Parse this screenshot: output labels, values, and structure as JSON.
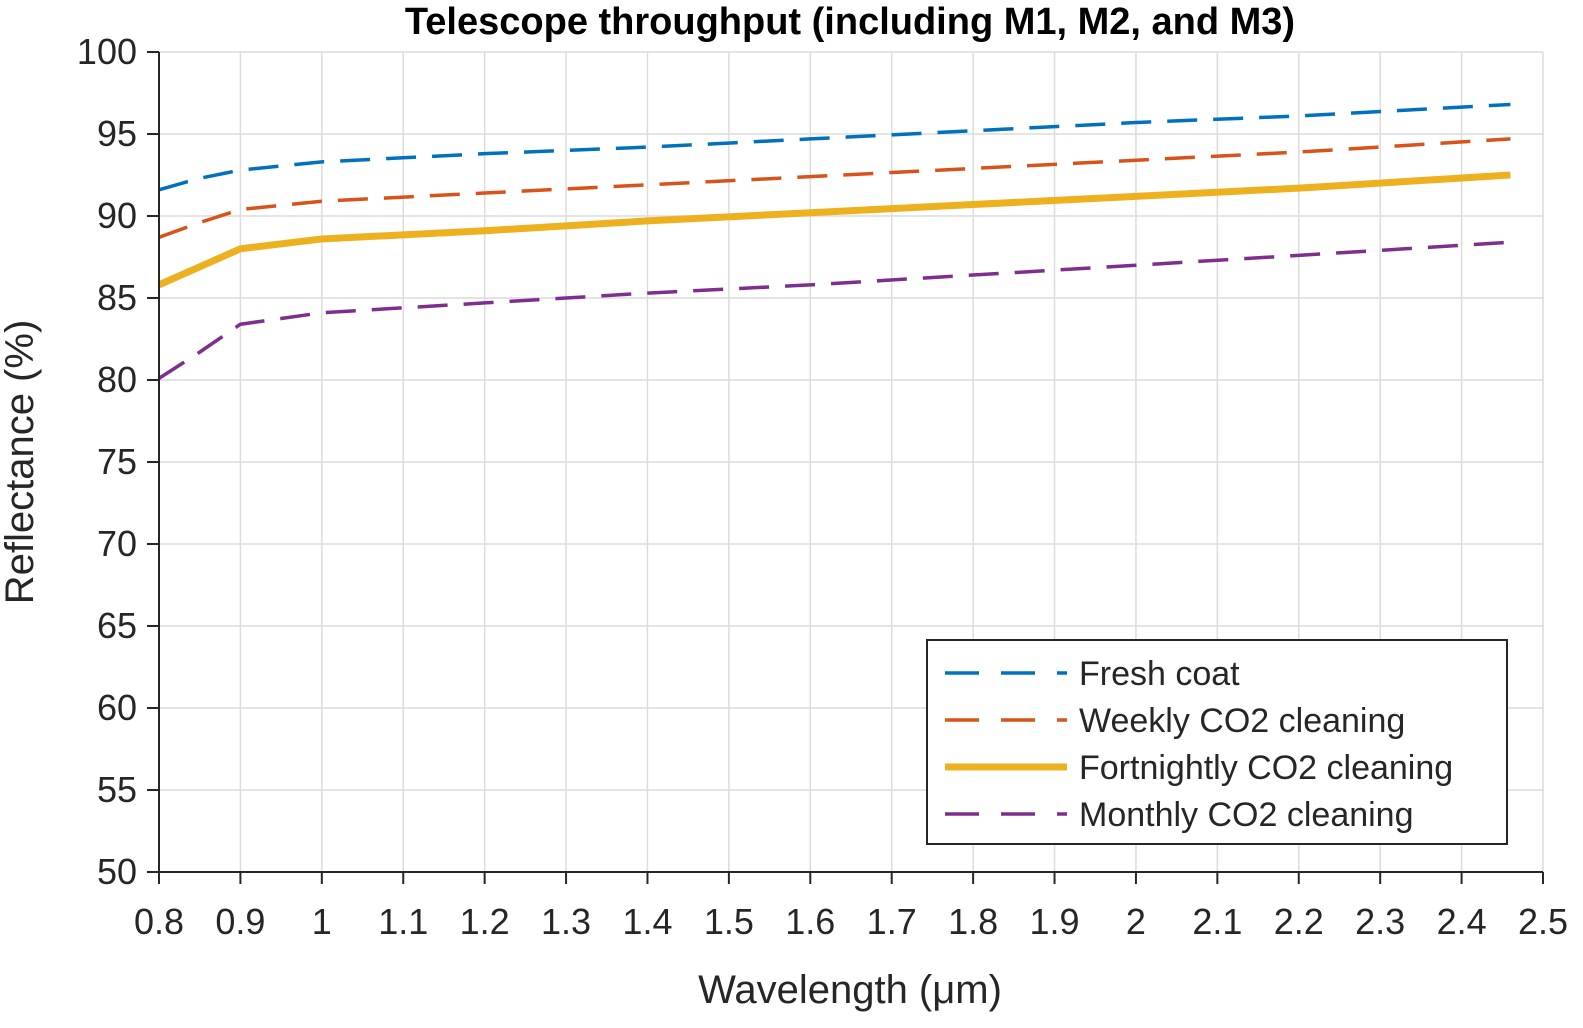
{
  "chart_data": {
    "type": "line",
    "title": "Telescope throughput (including M1, M2, and M3)",
    "xlabel": "Wavelength (μm)",
    "ylabel": "Reflectance (%)",
    "xlim": [
      0.8,
      2.5
    ],
    "ylim": [
      50,
      100
    ],
    "grid": true,
    "legend_position": "bottom-right",
    "xticks": [
      0.8,
      0.9,
      1.0,
      1.1,
      1.2,
      1.3,
      1.4,
      1.5,
      1.6,
      1.7,
      1.8,
      1.9,
      2.0,
      2.1,
      2.2,
      2.3,
      2.4,
      2.5
    ],
    "xtick_labels": [
      "0.8",
      "0.9",
      "1",
      "1.1",
      "1.2",
      "1.3",
      "1.4",
      "1.5",
      "1.6",
      "1.7",
      "1.8",
      "1.9",
      "2",
      "2.1",
      "2.2",
      "2.3",
      "2.4",
      "2.5"
    ],
    "yticks": [
      50,
      55,
      60,
      65,
      70,
      75,
      80,
      85,
      90,
      95,
      100
    ],
    "ytick_labels": [
      "50",
      "55",
      "60",
      "65",
      "70",
      "75",
      "80",
      "85",
      "90",
      "95",
      "100"
    ],
    "x": [
      0.8,
      0.85,
      0.9,
      1.0,
      1.2,
      1.4,
      1.6,
      1.8,
      2.0,
      2.2,
      2.46
    ],
    "series": [
      {
        "name": "Fresh coat",
        "color": "#0072BD",
        "style": "dashed",
        "values": [
          91.6,
          92.3,
          92.8,
          93.3,
          93.8,
          94.2,
          94.7,
          95.2,
          95.7,
          96.1,
          96.8
        ]
      },
      {
        "name": "Weekly CO2 cleaning",
        "color": "#D95319",
        "style": "dashed",
        "values": [
          88.7,
          89.6,
          90.4,
          90.9,
          91.4,
          91.9,
          92.4,
          92.9,
          93.4,
          93.9,
          94.7
        ]
      },
      {
        "name": "Fortnightly CO2 cleaning",
        "color": "#EDB120",
        "style": "solid",
        "values": [
          85.8,
          86.9,
          88.0,
          88.6,
          89.1,
          89.7,
          90.2,
          90.7,
          91.2,
          91.7,
          92.5
        ]
      },
      {
        "name": "Monthly CO2 cleaning",
        "color": "#7E2F8E",
        "style": "dashed",
        "values": [
          80.1,
          81.7,
          83.4,
          84.1,
          84.7,
          85.3,
          85.8,
          86.4,
          87.0,
          87.6,
          88.4
        ]
      }
    ]
  }
}
